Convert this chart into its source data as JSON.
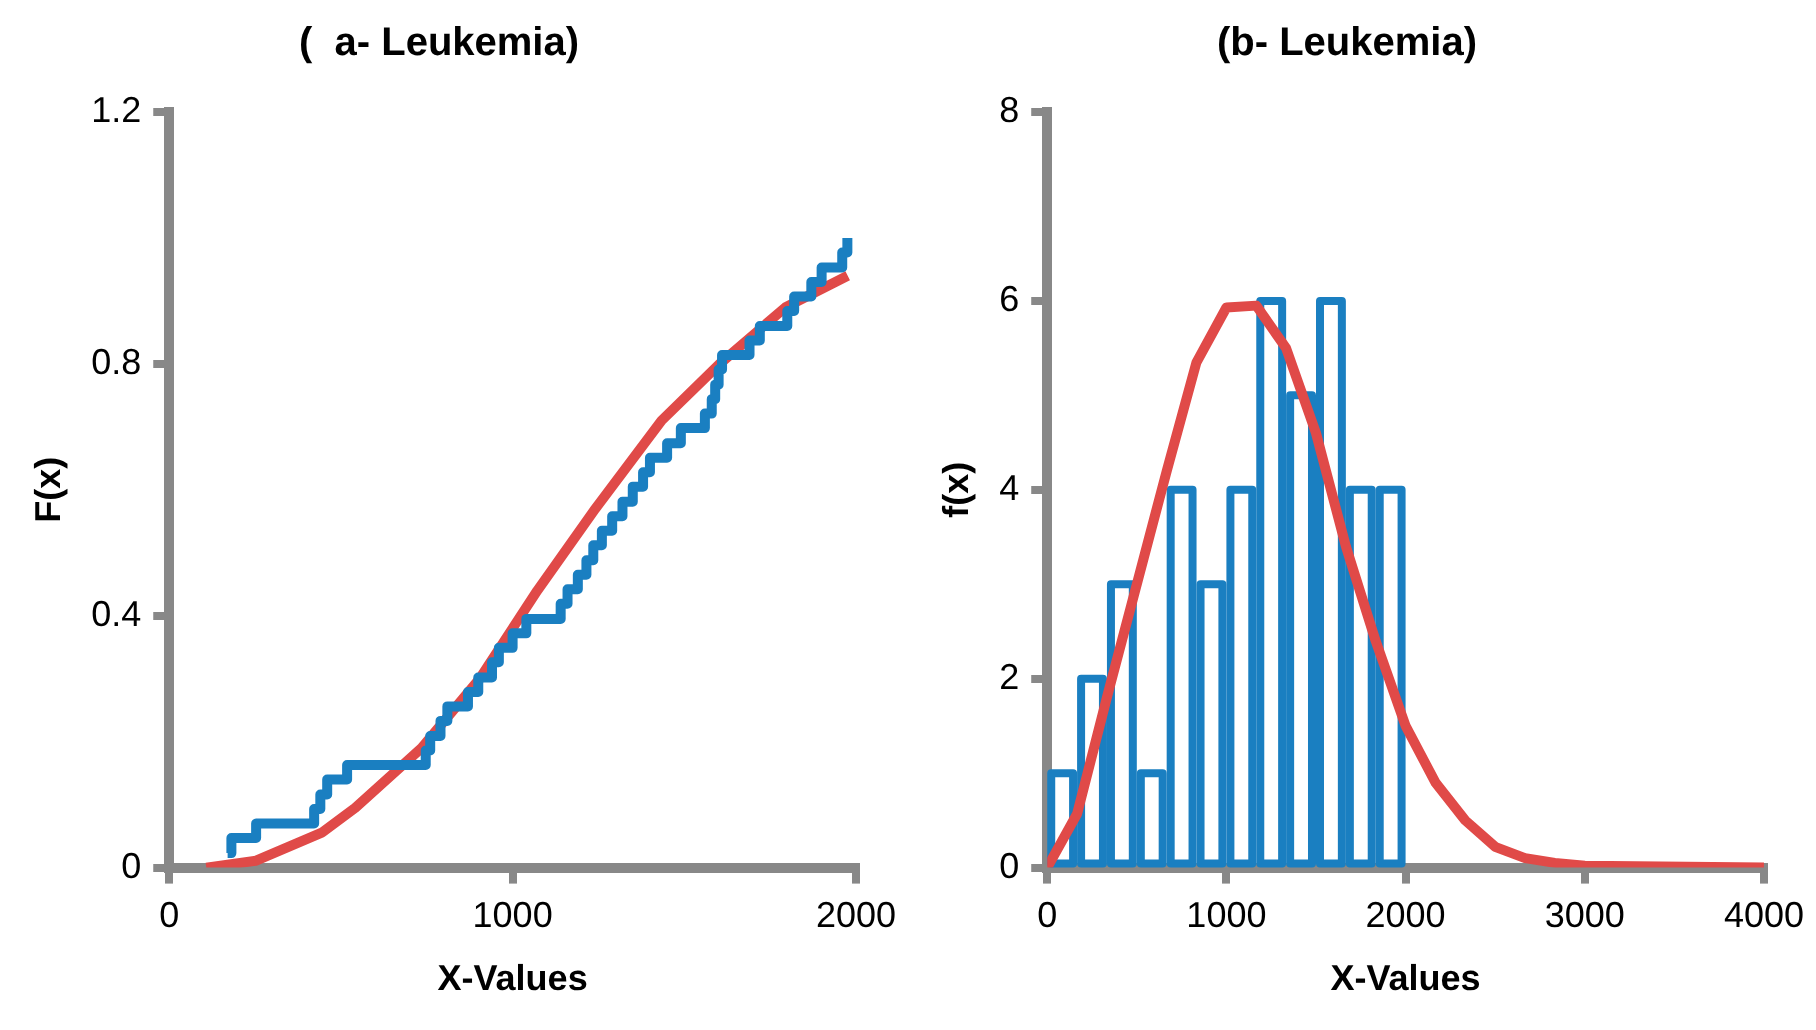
{
  "chart_data": [
    {
      "type": "line",
      "title": "(  a- Leukemia)",
      "xlabel": "X-Values",
      "ylabel": "F(x)",
      "xlim": [
        0,
        2000
      ],
      "xticks": [
        0,
        1000,
        2000
      ],
      "ylim": [
        0,
        1.2
      ],
      "yticks": [
        0,
        0.4,
        0.8,
        1.2
      ],
      "grid": false,
      "legend": false,
      "series": [
        {
          "type": "step",
          "color": "#1a7fc1",
          "x": [
            170,
            181,
            253,
            422,
            440,
            460,
            518,
            747,
            760,
            790,
            810,
            870,
            900,
            940,
            960,
            1000,
            1040,
            1140,
            1160,
            1190,
            1215,
            1235,
            1260,
            1290,
            1320,
            1350,
            1380,
            1400,
            1450,
            1490,
            1560,
            1580,
            1590,
            1600,
            1610,
            1690,
            1720,
            1800,
            1820,
            1870,
            1900,
            1960,
            1975
          ],
          "values": [
            0.023,
            0.047,
            0.07,
            0.093,
            0.116,
            0.14,
            0.163,
            0.186,
            0.209,
            0.233,
            0.256,
            0.279,
            0.302,
            0.326,
            0.349,
            0.372,
            0.395,
            0.419,
            0.442,
            0.465,
            0.488,
            0.512,
            0.535,
            0.558,
            0.581,
            0.605,
            0.628,
            0.651,
            0.674,
            0.698,
            0.721,
            0.744,
            0.767,
            0.791,
            0.814,
            0.837,
            0.86,
            0.884,
            0.907,
            0.93,
            0.953,
            0.977,
            1.0
          ]
        },
        {
          "type": "line",
          "color": "#e04a48",
          "x": [
            108,
            253,
            446,
            542,
            735,
            904,
            1072,
            1241,
            1434,
            1603,
            1795,
            1976
          ],
          "values": [
            0,
            0.011,
            0.056,
            0.095,
            0.19,
            0.3,
            0.44,
            0.57,
            0.71,
            0.8,
            0.89,
            0.94
          ]
        }
      ]
    },
    {
      "type": "histogram",
      "title": "(b- Leukemia)",
      "xlabel": "X-Values",
      "ylabel": "f(x)",
      "xlim": [
        0,
        4000
      ],
      "xticks": [
        0,
        1000,
        2000,
        3000,
        4000
      ],
      "ylim": [
        0,
        8
      ],
      "yticks": [
        0,
        2,
        4,
        6,
        8
      ],
      "grid": false,
      "legend": false,
      "bins": [
        0,
        166.7,
        333.3,
        500,
        666.7,
        833.3,
        1000,
        1166.7,
        1333.3,
        1500,
        1666.7,
        1833.3,
        2000
      ],
      "series": [
        {
          "color": "#1a7fc1",
          "values": [
            1,
            2,
            3,
            1,
            4,
            3,
            4,
            6,
            5,
            6,
            4,
            4
          ]
        },
        {
          "type": "line",
          "color": "#e04a48",
          "x": [
            0,
            167,
            333,
            500,
            667,
            833,
            1000,
            1167,
            1333,
            1500,
            1667,
            1833,
            2000,
            2167,
            2333,
            2500,
            2667,
            2833,
            3000,
            4000
          ],
          "values": [
            0,
            0.57,
            1.8,
            3,
            4.2,
            5.35,
            5.93,
            5.95,
            5.5,
            4.6,
            3.4,
            2.4,
            1.5,
            0.9,
            0.5,
            0.22,
            0.1,
            0.05,
            0.02,
            0
          ]
        }
      ]
    }
  ]
}
